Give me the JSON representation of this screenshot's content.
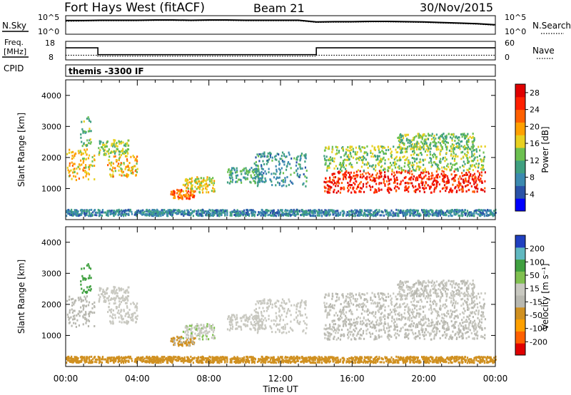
{
  "header": {
    "station": "Fort Hays West (fitACF)",
    "beam": "Beam 21",
    "date": "30/Nov/2015"
  },
  "noise_panel": {
    "left_label": "N.Sky",
    "right_label": "N.Search",
    "left_ticks": [
      "10^5",
      "10^0"
    ],
    "right_ticks": [
      "10^5",
      "10^0"
    ]
  },
  "freq_panel": {
    "left_label_line1": "Freq.",
    "left_label_line2": "[MHz]",
    "right_label": "Nave",
    "left_ticks": [
      "18",
      "8"
    ],
    "right_ticks": [
      "60",
      "0"
    ]
  },
  "cpid": {
    "label": "CPID",
    "value": "themis -3300 IF"
  },
  "x_axis": {
    "label": "Time UT",
    "ticks": [
      "00:00",
      "04:00",
      "08:00",
      "12:00",
      "16:00",
      "20:00",
      "00:00"
    ]
  },
  "power_panel": {
    "ylabel": "Slant Range [km]",
    "yticks": [
      "1000",
      "2000",
      "3000",
      "4000"
    ],
    "colorbar_label": "Power [dB]",
    "colorbar_ticks": [
      "4",
      "8",
      "12",
      "16",
      "20",
      "24",
      "28"
    ]
  },
  "velocity_panel": {
    "ylabel": "Slant Range [km]",
    "yticks": [
      "1000",
      "2000",
      "3000",
      "4000"
    ],
    "colorbar_label": "Velocity [m s⁻¹]",
    "colorbar_ticks": [
      "200",
      "100",
      "50",
      "15",
      "-15",
      "-50",
      "-100",
      "-200"
    ]
  },
  "chart_data": {
    "type": "heatmap",
    "x_range_hours": [
      0,
      24
    ],
    "y_range_km": [
      0,
      4500
    ],
    "noise": {
      "sky_log10": [
        4.3,
        4.3,
        4.4,
        4.4,
        4.4,
        4.5,
        4.5,
        4.4,
        4.5,
        4.5,
        4.4,
        4.4,
        4.4,
        4.4,
        3.8,
        3.9,
        3.9,
        4.0,
        4.0,
        3.9,
        3.8,
        3.6,
        3.4,
        3.2,
        2.8
      ],
      "search_log10": [
        4.0,
        4.1,
        4.2,
        4.2,
        4.2,
        4.3,
        4.3,
        4.2,
        4.3,
        4.3,
        4.2,
        4.2,
        4.2,
        4.2,
        3.6,
        3.7,
        3.7,
        3.8,
        3.8,
        3.7,
        3.6,
        3.4,
        3.2,
        3.0,
        2.6
      ]
    },
    "frequency_mhz": [
      {
        "start": 0.0,
        "end": 1.8,
        "value": 14.5
      },
      {
        "start": 1.8,
        "end": 14.0,
        "value": 10.8
      },
      {
        "start": 14.0,
        "end": 24.0,
        "value": 14.5
      }
    ],
    "nave": [
      {
        "start": 0.0,
        "end": 1.8,
        "value": 15
      },
      {
        "start": 1.8,
        "end": 14.0,
        "value": 12
      },
      {
        "start": 14.0,
        "end": 24.0,
        "value": 15
      }
    ],
    "power_colorbar": {
      "range": [
        0,
        30
      ],
      "colors": [
        "#0000ff",
        "#2a52a8",
        "#3c8ab0",
        "#40a080",
        "#6cc050",
        "#e8d020",
        "#ffa000",
        "#ff6000",
        "#ff2000",
        "#e00000"
      ]
    },
    "velocity_colorbar": {
      "range": [
        -250,
        250
      ],
      "colors": [
        "#e00000",
        "#ff6000",
        "#ffa000",
        "#d09020",
        "#b8b8b0",
        "#c8c8c0",
        "#80c050",
        "#40a040",
        "#60b8c0",
        "#2040c0"
      ]
    },
    "scatter_bands": [
      {
        "t": [
          0.0,
          1.6
        ],
        "r": [
          1300,
          2300
        ],
        "power": 18,
        "velocity": -30
      },
      {
        "t": [
          0.8,
          1.4
        ],
        "r": [
          2400,
          3400
        ],
        "power": 12,
        "velocity": 120
      },
      {
        "t": [
          1.8,
          3.5
        ],
        "r": [
          2100,
          2600
        ],
        "power": 14,
        "velocity": 20
      },
      {
        "t": [
          2.3,
          4.0
        ],
        "r": [
          1400,
          2100
        ],
        "power": 18,
        "velocity": 30
      },
      {
        "t": [
          5.8,
          7.2
        ],
        "r": [
          700,
          1000
        ],
        "power": 22,
        "velocity": -60
      },
      {
        "t": [
          6.5,
          8.3
        ],
        "r": [
          900,
          1400
        ],
        "power": 17,
        "velocity": 40
      },
      {
        "t": [
          9.0,
          11.0
        ],
        "r": [
          1200,
          1700
        ],
        "power": 10,
        "velocity": 30
      },
      {
        "t": [
          10.5,
          13.5
        ],
        "r": [
          1100,
          2200
        ],
        "power": 9,
        "velocity": 25
      },
      {
        "t": [
          14.4,
          23.4
        ],
        "r": [
          900,
          1600
        ],
        "power": 26,
        "velocity": -5
      },
      {
        "t": [
          14.4,
          23.4
        ],
        "r": [
          1600,
          2400
        ],
        "power": 14,
        "velocity": 5
      },
      {
        "t": [
          18.5,
          22.8
        ],
        "r": [
          2300,
          2800
        ],
        "power": 13,
        "velocity": 5
      },
      {
        "t": [
          0.0,
          24.0
        ],
        "r": [
          150,
          350
        ],
        "power": 8,
        "velocity": -70
      }
    ]
  }
}
